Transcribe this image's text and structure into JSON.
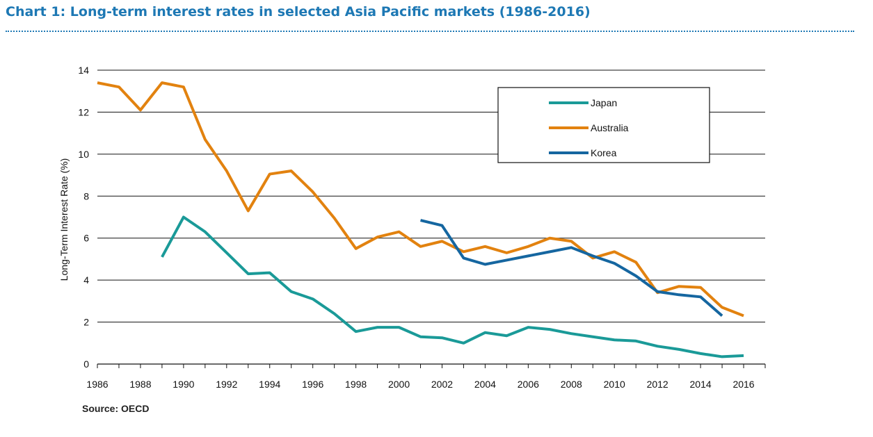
{
  "title": "Chart 1: Long-term interest rates in selected Asia Pacific markets (1986-2016)",
  "source": "Source: OECD",
  "chart_data": {
    "type": "line",
    "title": "Chart 1: Long-term interest rates in selected Asia Pacific markets (1986-2016)",
    "xlabel": "",
    "ylabel": "Long-Term Interest Rate (%)",
    "xlim": [
      1986,
      2017
    ],
    "ylim": [
      0,
      14
    ],
    "xticks": [
      1986,
      1988,
      1990,
      1992,
      1994,
      1996,
      1998,
      2000,
      2002,
      2004,
      2006,
      2008,
      2010,
      2012,
      2014,
      2016
    ],
    "yticks": [
      0,
      2,
      4,
      6,
      8,
      10,
      12,
      14
    ],
    "grid": true,
    "legend": "top-right",
    "series": [
      {
        "name": "Japan",
        "color": "#1a9a98",
        "x": [
          1989,
          1990,
          1991,
          1992,
          1993,
          1994,
          1995,
          1996,
          1997,
          1998,
          1999,
          2000,
          2001,
          2002,
          2003,
          2004,
          2005,
          2006,
          2007,
          2008,
          2009,
          2010,
          2011,
          2012,
          2013,
          2014,
          2015,
          2016
        ],
        "values": [
          5.1,
          7.0,
          6.3,
          5.3,
          4.3,
          4.35,
          3.45,
          3.1,
          2.4,
          1.55,
          1.75,
          1.75,
          1.3,
          1.25,
          1.0,
          1.5,
          1.35,
          1.75,
          1.65,
          1.45,
          1.3,
          1.15,
          1.1,
          0.85,
          0.7,
          0.5,
          0.35,
          0.4
        ]
      },
      {
        "name": "Australia",
        "color": "#e2820f",
        "x": [
          1986,
          1987,
          1988,
          1989,
          1990,
          1991,
          1992,
          1993,
          1994,
          1995,
          1996,
          1997,
          1998,
          1999,
          2000,
          2001,
          2002,
          2003,
          2004,
          2005,
          2006,
          2007,
          2008,
          2009,
          2010,
          2011,
          2012,
          2013,
          2014,
          2015,
          2016
        ],
        "values": [
          13.4,
          13.2,
          12.1,
          13.4,
          13.2,
          10.7,
          9.2,
          7.3,
          9.05,
          9.2,
          8.2,
          6.95,
          5.5,
          6.05,
          6.3,
          5.6,
          5.85,
          5.35,
          5.6,
          5.3,
          5.6,
          6.0,
          5.85,
          5.05,
          5.35,
          4.85,
          3.4,
          3.7,
          3.65,
          2.7,
          2.3
        ]
      },
      {
        "name": "Korea",
        "color": "#1566a0",
        "x": [
          2001,
          2002,
          2003,
          2004,
          2005,
          2006,
          2007,
          2008,
          2009,
          2010,
          2011,
          2012,
          2013,
          2014,
          2015
        ],
        "values": [
          6.85,
          6.6,
          5.05,
          4.75,
          4.95,
          5.15,
          5.35,
          5.55,
          5.15,
          4.8,
          4.2,
          3.45,
          3.3,
          3.2,
          2.3
        ]
      }
    ]
  }
}
